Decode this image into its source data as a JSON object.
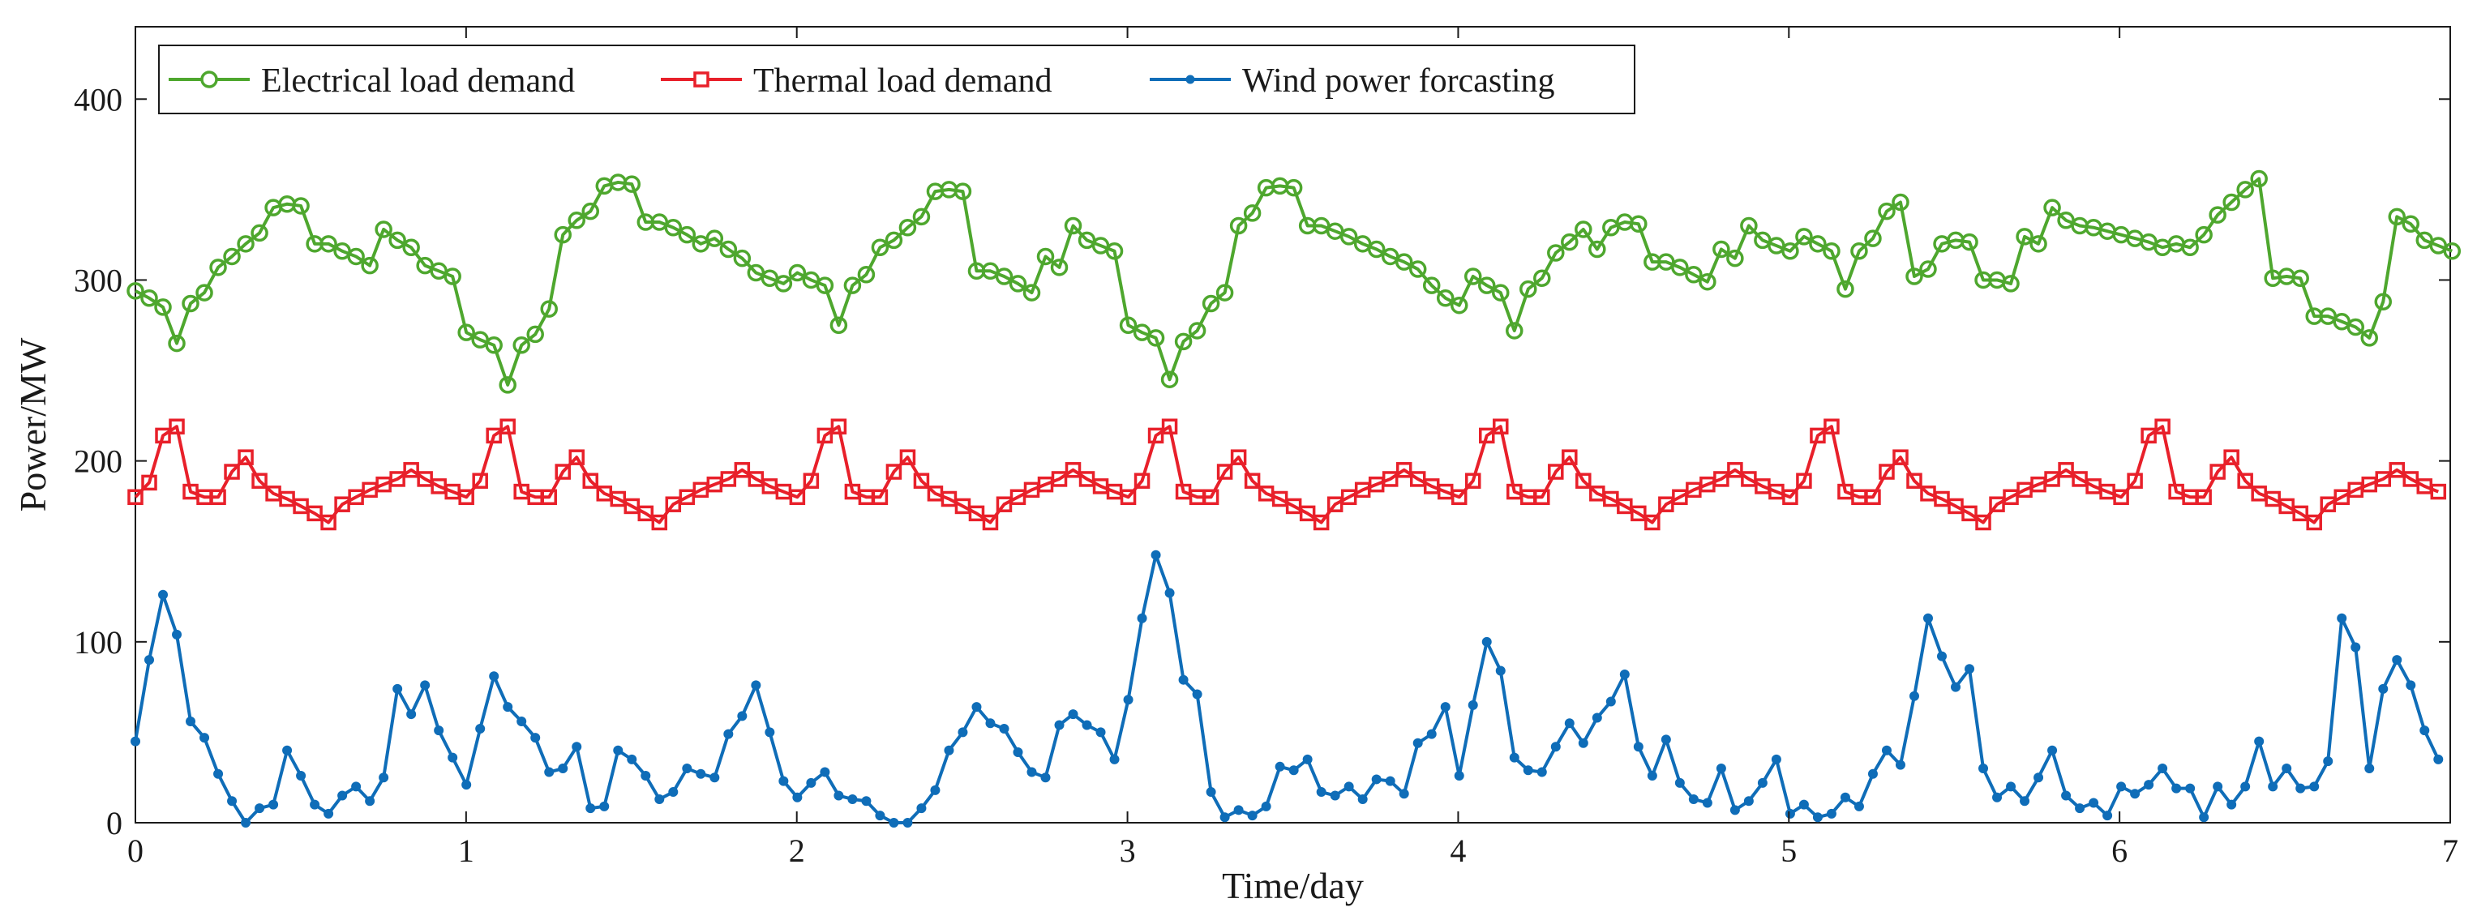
{
  "chart_data": {
    "type": "line",
    "xlabel": "Time/day",
    "ylabel": "Power/MW",
    "xlim": [
      0,
      7
    ],
    "ylim": [
      0,
      440
    ],
    "xticks": [
      0,
      1,
      2,
      3,
      4,
      5,
      6,
      7
    ],
    "yticks": [
      0,
      100,
      200,
      300,
      400
    ],
    "grid": false,
    "legend_position": "top-left",
    "series": [
      {
        "name": "Electrical load demand",
        "color": "#4ea72e",
        "marker": "circle",
        "x_step": 0.0417,
        "values": [
          294,
          290,
          285,
          265,
          287,
          293,
          307,
          313,
          320,
          326,
          340,
          342,
          341,
          320,
          320,
          316,
          313,
          308,
          328,
          322,
          318,
          308,
          305,
          302,
          271,
          267,
          264,
          242,
          264,
          270,
          284,
          325,
          333,
          338,
          352,
          354,
          353,
          332,
          332,
          329,
          325,
          320,
          323,
          317,
          312,
          304,
          301,
          298,
          304,
          300,
          297,
          275,
          297,
          303,
          318,
          322,
          329,
          335,
          349,
          350,
          349,
          305,
          305,
          302,
          298,
          293,
          313,
          307,
          330,
          322,
          319,
          316,
          275,
          271,
          268,
          245,
          266,
          272,
          287,
          293,
          330,
          337,
          351,
          352,
          351,
          330,
          330,
          327,
          324,
          320,
          317,
          313,
          310,
          306,
          297,
          290,
          286,
          302,
          297,
          293,
          272,
          295,
          301,
          315,
          321,
          328,
          317,
          329,
          332,
          331,
          310,
          310,
          307,
          303,
          299,
          317,
          312,
          330,
          322,
          319,
          316,
          324,
          320,
          316,
          295,
          316,
          323,
          338,
          343,
          302,
          306,
          320,
          322,
          321,
          300,
          300,
          298,
          324,
          320,
          340,
          333,
          330,
          329,
          327,
          325,
          323,
          321,
          318,
          320,
          318,
          325,
          336,
          343,
          350,
          356,
          301,
          302,
          301,
          280,
          280,
          277,
          274,
          268,
          288,
          335,
          331,
          322,
          319,
          316
        ]
      },
      {
        "name": "Thermal load demand",
        "color": "#e8202a",
        "marker": "square",
        "x_step": 0.0417,
        "values": [
          180,
          188,
          214,
          219,
          183,
          180,
          180,
          194,
          202,
          189,
          182,
          179,
          175,
          171,
          166,
          176,
          180,
          184,
          187,
          190,
          195,
          190,
          186,
          183,
          180,
          189,
          214,
          219,
          183,
          180,
          180,
          194,
          202,
          189,
          182,
          179,
          175,
          171,
          166,
          176,
          180,
          184,
          187,
          190,
          195,
          190,
          186,
          183,
          180,
          189,
          214,
          219,
          183,
          180,
          180,
          194,
          202,
          189,
          182,
          179,
          175,
          171,
          166,
          176,
          180,
          184,
          187,
          190,
          195,
          190,
          186,
          183,
          180,
          189,
          214,
          219,
          183,
          180,
          180,
          194,
          202,
          189,
          182,
          179,
          175,
          171,
          166,
          176,
          180,
          184,
          187,
          190,
          195,
          190,
          186,
          183,
          180,
          189,
          214,
          219,
          183,
          180,
          180,
          194,
          202,
          189,
          182,
          179,
          175,
          171,
          166,
          176,
          180,
          184,
          187,
          190,
          195,
          190,
          186,
          183,
          180,
          189,
          214,
          219,
          183,
          180,
          180,
          194,
          202,
          189,
          182,
          179,
          175,
          171,
          166,
          176,
          180,
          184,
          187,
          190,
          195,
          190,
          186,
          183,
          180,
          189,
          214,
          219,
          183,
          180,
          180,
          194,
          202,
          189,
          182,
          179,
          175,
          171,
          166,
          176,
          180,
          184,
          187,
          190,
          195,
          190,
          186,
          183
        ]
      },
      {
        "name": "Wind power forcasting",
        "color": "#0f6db8",
        "marker": "dot",
        "x_step": 0.0417,
        "values": [
          45,
          90,
          126,
          104,
          56,
          47,
          27,
          12,
          0,
          8,
          10,
          40,
          26,
          10,
          5,
          15,
          20,
          12,
          25,
          74,
          60,
          76,
          51,
          36,
          21,
          52,
          81,
          64,
          56,
          47,
          28,
          30,
          42,
          8,
          9,
          40,
          35,
          26,
          13,
          17,
          30,
          27,
          25,
          49,
          59,
          76,
          50,
          23,
          14,
          22,
          28,
          15,
          13,
          12,
          4,
          0,
          0,
          8,
          18,
          40,
          50,
          64,
          55,
          52,
          39,
          28,
          25,
          54,
          60,
          54,
          50,
          35,
          68,
          113,
          148,
          127,
          79,
          71,
          17,
          3,
          7,
          4,
          9,
          31,
          29,
          35,
          17,
          15,
          20,
          13,
          24,
          23,
          16,
          44,
          49,
          64,
          26,
          65,
          100,
          84,
          36,
          29,
          28,
          42,
          55,
          44,
          58,
          67,
          82,
          42,
          26,
          46,
          22,
          13,
          11,
          30,
          7,
          12,
          22,
          35,
          5,
          10,
          3,
          5,
          14,
          9,
          27,
          40,
          32,
          70,
          113,
          92,
          75,
          85,
          30,
          14,
          20,
          12,
          25,
          40,
          15,
          8,
          11,
          4,
          20,
          16,
          21,
          30,
          19,
          19,
          3,
          20,
          10,
          20,
          45,
          20,
          30,
          19,
          20,
          34,
          113,
          97,
          30,
          74,
          90,
          76,
          51,
          35
        ]
      }
    ]
  }
}
